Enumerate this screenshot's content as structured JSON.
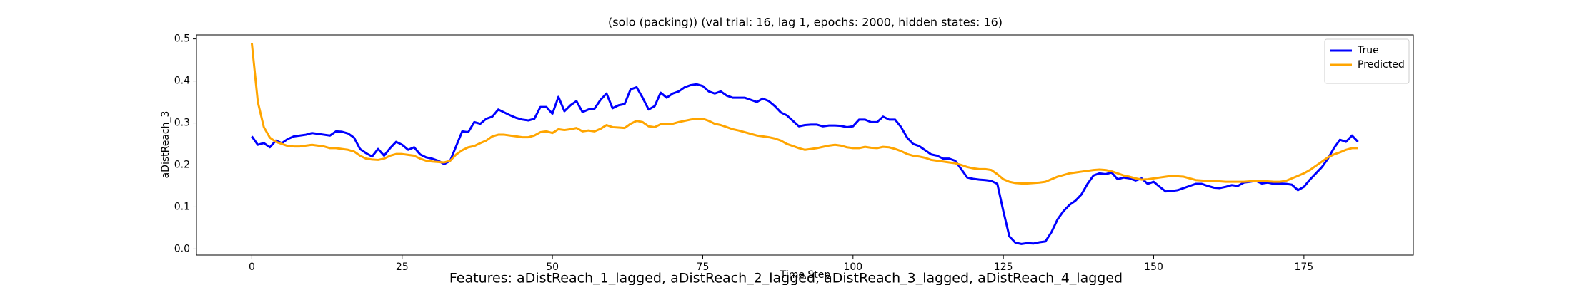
{
  "chart_data": {
    "type": "line",
    "title": "(solo (packing)) (val trial: 16, lag 1, epochs: 2000, hidden states: 16)",
    "xlabel": "Time Step",
    "ylabel": "aDistReach_3",
    "caption": "Features: aDistReach_1_lagged, aDistReach_2_lagged, aDistReach_3_lagged, aDistReach_4_lagged",
    "legend": "upper right",
    "x": [
      0,
      1,
      2,
      3,
      4,
      5,
      6,
      7,
      8,
      9,
      10,
      11,
      12,
      13,
      14,
      15,
      16,
      17,
      18,
      19,
      20,
      21,
      22,
      23,
      24,
      25,
      26,
      27,
      28,
      29,
      30,
      31,
      32,
      33,
      34,
      35,
      36,
      37,
      38,
      39,
      40,
      41,
      42,
      43,
      44,
      45,
      46,
      47,
      48,
      49,
      50,
      51,
      52,
      53,
      54,
      55,
      56,
      57,
      58,
      59,
      60,
      61,
      62,
      63,
      64,
      65,
      66,
      67,
      68,
      69,
      70,
      71,
      72,
      73,
      74,
      75,
      76,
      77,
      78,
      79,
      80,
      81,
      82,
      83,
      84,
      85,
      86,
      87,
      88,
      89,
      90,
      91,
      92,
      93,
      94,
      95,
      96,
      97,
      98,
      99,
      100,
      101,
      102,
      103,
      104,
      105,
      106,
      107,
      108,
      109,
      110,
      111,
      112,
      113,
      114,
      115,
      116,
      117,
      118,
      119,
      120,
      121,
      122,
      123,
      124,
      125,
      126,
      127,
      128,
      129,
      130,
      131,
      132,
      133,
      134,
      135,
      136,
      137,
      138,
      139,
      140,
      141,
      142,
      143,
      144,
      145,
      146,
      147,
      148,
      149,
      150,
      151,
      152,
      153,
      154,
      155,
      156,
      157,
      158,
      159,
      160,
      161,
      162,
      163,
      164,
      165,
      166,
      167,
      168,
      169,
      170,
      171,
      172,
      173,
      174,
      175,
      176,
      177,
      178,
      179,
      180,
      181,
      182,
      183,
      184
    ],
    "series": [
      {
        "name": "True",
        "color": "#0000ff",
        "values": [
          0.268,
          0.248,
          0.252,
          0.242,
          0.258,
          0.252,
          0.262,
          0.268,
          0.27,
          0.272,
          0.276,
          0.274,
          0.272,
          0.27,
          0.28,
          0.279,
          0.275,
          0.265,
          0.238,
          0.228,
          0.22,
          0.238,
          0.222,
          0.24,
          0.255,
          0.248,
          0.236,
          0.242,
          0.225,
          0.218,
          0.215,
          0.21,
          0.202,
          0.21,
          0.245,
          0.28,
          0.278,
          0.302,
          0.298,
          0.31,
          0.315,
          0.332,
          0.325,
          0.318,
          0.312,
          0.308,
          0.306,
          0.31,
          0.338,
          0.338,
          0.322,
          0.362,
          0.328,
          0.342,
          0.352,
          0.326,
          0.332,
          0.334,
          0.355,
          0.37,
          0.335,
          0.342,
          0.345,
          0.38,
          0.385,
          0.36,
          0.332,
          0.34,
          0.372,
          0.36,
          0.37,
          0.375,
          0.385,
          0.39,
          0.392,
          0.388,
          0.375,
          0.37,
          0.375,
          0.365,
          0.36,
          0.36,
          0.36,
          0.355,
          0.35,
          0.358,
          0.352,
          0.34,
          0.325,
          0.318,
          0.305,
          0.292,
          0.295,
          0.296,
          0.296,
          0.292,
          0.294,
          0.294,
          0.293,
          0.29,
          0.292,
          0.308,
          0.308,
          0.302,
          0.302,
          0.315,
          0.308,
          0.308,
          0.29,
          0.265,
          0.25,
          0.245,
          0.235,
          0.225,
          0.222,
          0.215,
          0.215,
          0.21,
          0.19,
          0.17,
          0.167,
          0.165,
          0.164,
          0.162,
          0.155,
          0.09,
          0.03,
          0.015,
          0.012,
          0.014,
          0.013,
          0.016,
          0.018,
          0.04,
          0.07,
          0.09,
          0.105,
          0.115,
          0.13,
          0.155,
          0.175,
          0.18,
          0.178,
          0.182,
          0.166,
          0.17,
          0.168,
          0.163,
          0.168,
          0.155,
          0.16,
          0.148,
          0.137,
          0.138,
          0.14,
          0.145,
          0.15,
          0.155,
          0.155,
          0.15,
          0.146,
          0.145,
          0.148,
          0.152,
          0.15,
          0.158,
          0.16,
          0.162,
          0.156,
          0.158,
          0.155,
          0.156,
          0.155,
          0.153,
          0.14,
          0.148,
          0.165,
          0.18,
          0.195,
          0.215,
          0.24,
          0.26,
          0.255,
          0.27,
          0.255
        ]
      },
      {
        "name": "Predicted",
        "color": "#ffa500",
        "values": [
          0.49,
          0.35,
          0.29,
          0.265,
          0.255,
          0.25,
          0.245,
          0.244,
          0.244,
          0.246,
          0.248,
          0.246,
          0.244,
          0.24,
          0.24,
          0.238,
          0.236,
          0.232,
          0.222,
          0.215,
          0.213,
          0.212,
          0.215,
          0.222,
          0.226,
          0.226,
          0.224,
          0.222,
          0.215,
          0.21,
          0.208,
          0.207,
          0.206,
          0.21,
          0.225,
          0.235,
          0.242,
          0.245,
          0.252,
          0.258,
          0.268,
          0.272,
          0.272,
          0.27,
          0.268,
          0.266,
          0.266,
          0.27,
          0.278,
          0.28,
          0.276,
          0.285,
          0.283,
          0.285,
          0.288,
          0.28,
          0.282,
          0.28,
          0.286,
          0.295,
          0.29,
          0.289,
          0.288,
          0.298,
          0.305,
          0.302,
          0.292,
          0.29,
          0.297,
          0.297,
          0.298,
          0.302,
          0.305,
          0.308,
          0.31,
          0.31,
          0.305,
          0.298,
          0.295,
          0.29,
          0.285,
          0.282,
          0.278,
          0.274,
          0.27,
          0.268,
          0.266,
          0.263,
          0.258,
          0.25,
          0.245,
          0.24,
          0.236,
          0.238,
          0.24,
          0.243,
          0.246,
          0.248,
          0.246,
          0.242,
          0.24,
          0.24,
          0.243,
          0.241,
          0.24,
          0.243,
          0.242,
          0.238,
          0.233,
          0.226,
          0.222,
          0.22,
          0.217,
          0.212,
          0.21,
          0.208,
          0.206,
          0.204,
          0.2,
          0.195,
          0.192,
          0.19,
          0.19,
          0.188,
          0.178,
          0.166,
          0.16,
          0.157,
          0.156,
          0.156,
          0.157,
          0.158,
          0.16,
          0.166,
          0.172,
          0.176,
          0.18,
          0.182,
          0.184,
          0.186,
          0.188,
          0.189,
          0.188,
          0.185,
          0.18,
          0.175,
          0.172,
          0.168,
          0.165,
          0.166,
          0.168,
          0.17,
          0.172,
          0.174,
          0.173,
          0.172,
          0.168,
          0.164,
          0.163,
          0.162,
          0.161,
          0.161,
          0.16,
          0.16,
          0.16,
          0.16,
          0.161,
          0.161,
          0.161,
          0.161,
          0.16,
          0.16,
          0.162,
          0.168,
          0.174,
          0.18,
          0.188,
          0.198,
          0.208,
          0.218,
          0.225,
          0.23,
          0.236,
          0.24,
          0.24
        ]
      }
    ],
    "xlim": [
      -9.2,
      193.2
    ],
    "ylim": [
      -0.0145,
      0.5095
    ],
    "xticks": [
      0,
      25,
      50,
      75,
      100,
      125,
      150,
      175
    ],
    "yticks": [
      {
        "value": 0,
        "label": "0.0"
      },
      0.1,
      0.2,
      0.3,
      0.4,
      0.5
    ]
  }
}
